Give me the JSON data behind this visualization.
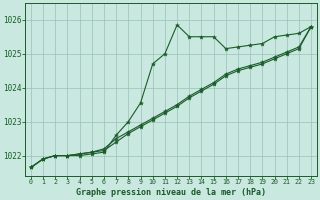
{
  "title": "Graphe pression niveau de la mer (hPa)",
  "hours": [
    0,
    1,
    2,
    3,
    4,
    5,
    6,
    7,
    8,
    9,
    10,
    11,
    12,
    13,
    14,
    15,
    16,
    17,
    18,
    19,
    20,
    21,
    22,
    23
  ],
  "ylim": [
    1021.4,
    1026.5
  ],
  "yticks": [
    1022,
    1023,
    1024,
    1025,
    1026
  ],
  "bg_color": "#c8e8e0",
  "grid_color": "#9bbfb8",
  "line_color": "#1a5c28",
  "series1": [
    1021.65,
    1021.9,
    1022.0,
    1022.0,
    1022.0,
    1022.05,
    1022.1,
    1022.6,
    1023.0,
    1023.55,
    1024.7,
    1025.0,
    1025.85,
    1025.5,
    1025.5,
    1025.5,
    1025.15,
    1025.2,
    1025.25,
    1025.3,
    1025.5,
    1025.55,
    1025.6,
    1025.8
  ],
  "series2": [
    1021.65,
    1021.9,
    1022.0,
    1022.0,
    1022.05,
    1022.1,
    1022.2,
    1022.5,
    1022.7,
    1022.9,
    1023.1,
    1023.3,
    1023.5,
    1023.75,
    1023.95,
    1024.15,
    1024.4,
    1024.55,
    1024.65,
    1024.75,
    1024.9,
    1025.05,
    1025.2,
    1025.8
  ],
  "series3": [
    1021.65,
    1021.9,
    1022.0,
    1022.0,
    1022.05,
    1022.1,
    1022.15,
    1022.4,
    1022.65,
    1022.85,
    1023.05,
    1023.25,
    1023.45,
    1023.7,
    1023.9,
    1024.1,
    1024.35,
    1024.5,
    1024.6,
    1024.7,
    1024.85,
    1025.0,
    1025.15,
    1025.8
  ]
}
